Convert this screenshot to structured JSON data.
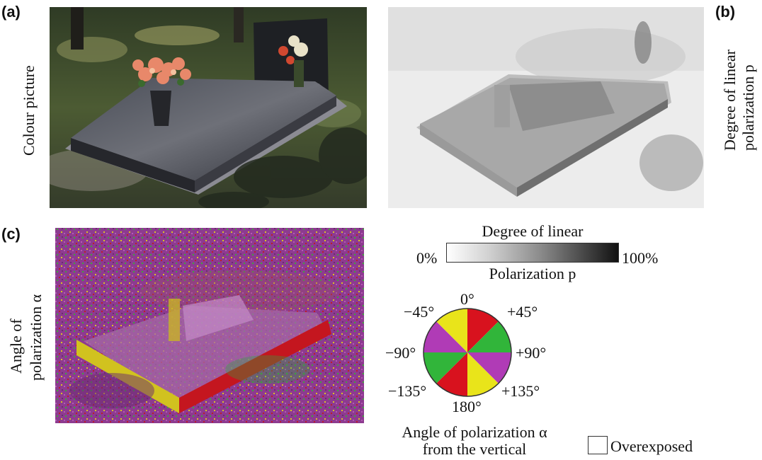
{
  "panels": {
    "a": {
      "label": "(a)",
      "side_caption": "Colour picture"
    },
    "b": {
      "label": "(b)",
      "side_caption_line1": "Degree of linear",
      "side_caption_line2": "polarization p"
    },
    "c": {
      "label": "(c)",
      "side_caption_line1": "Angle of",
      "side_caption_line2": "polarization α"
    }
  },
  "legend_p": {
    "title": "Degree of linear",
    "min_label": "0%",
    "max_label": "100%",
    "subtitle": "Polarization p"
  },
  "legend_angle": {
    "labels": {
      "top": "0°",
      "top_right": "+45°",
      "right": "+90°",
      "bottom_right": "+135°",
      "bottom": "180°",
      "bottom_left": "−135°",
      "left": "−90°",
      "top_left": "−45°"
    },
    "caption_line1": "Angle of polarization α",
    "caption_line2": "from the vertical"
  },
  "overexposed": {
    "label": "Overexposed"
  },
  "colors": {
    "red": "#d8121e",
    "yellow": "#e9e41a",
    "green": "#31b53a",
    "magenta": "#b03bb6",
    "purple_bg": "#8c3c8f",
    "granite": "#2e2f33"
  }
}
